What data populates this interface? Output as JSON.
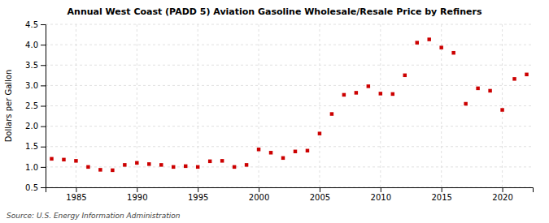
{
  "chart_data": {
    "type": "scatter",
    "title": "Annual West Coast (PADD 5) Aviation Gasoline Wholesale/Resale Price by Refiners",
    "ylabel": "Dollars per Gallon",
    "source": "Source: U.S. Energy Information Administration",
    "x": [
      1983,
      1984,
      1985,
      1986,
      1987,
      1988,
      1989,
      1990,
      1991,
      1992,
      1993,
      1994,
      1995,
      1996,
      1997,
      1998,
      1999,
      2000,
      2001,
      2002,
      2003,
      2004,
      2005,
      2006,
      2007,
      2008,
      2009,
      2010,
      2011,
      2012,
      2013,
      2014,
      2015,
      2016,
      2017,
      2018,
      2019,
      2020,
      2021,
      2022
    ],
    "values": [
      1.2,
      1.18,
      1.15,
      1.0,
      0.93,
      0.92,
      1.05,
      1.1,
      1.07,
      1.05,
      1.0,
      1.02,
      1.0,
      1.14,
      1.15,
      1.0,
      1.05,
      1.43,
      1.35,
      1.22,
      1.38,
      1.4,
      1.82,
      2.3,
      2.77,
      2.82,
      2.98,
      2.8,
      2.79,
      3.25,
      4.05,
      4.13,
      3.93,
      3.8,
      2.55,
      2.93,
      2.87,
      2.4,
      3.16,
      3.27
    ],
    "color": "#cc0000",
    "marker": "square",
    "xlim": [
      1982.5,
      2022.5
    ],
    "ylim": [
      0.5,
      4.5
    ],
    "xticks": [
      1985,
      1990,
      1995,
      2000,
      2005,
      2010,
      2015,
      2020
    ],
    "yticks": [
      0.5,
      {
        "value": 1.0,
        "label": "1.0"
      },
      1.5,
      {
        "value": 2.0,
        "label": "2.0"
      },
      2.5,
      {
        "value": 3.0,
        "label": "3.0"
      },
      3.5,
      {
        "value": 4.0,
        "label": "4.0"
      },
      4.5
    ],
    "grid": true
  }
}
